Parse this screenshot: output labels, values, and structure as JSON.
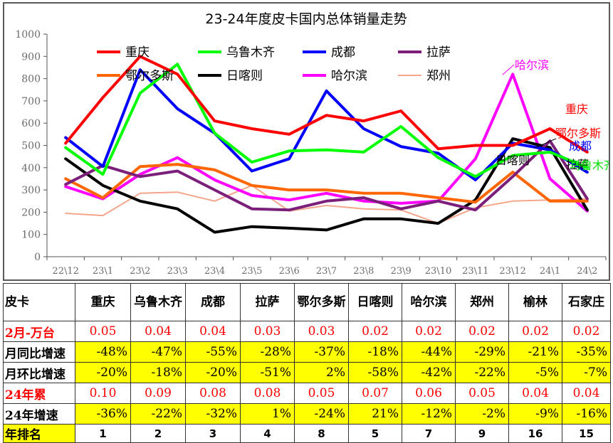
{
  "chart_data": {
    "type": "line",
    "title": "23-24年度皮卡国内总体销量走势",
    "categories": [
      "22\\12",
      "23\\1",
      "23\\2",
      "23\\3",
      "23\\4",
      "23\\5",
      "23\\6",
      "23\\7",
      "23\\8",
      "23\\9",
      "23\\10",
      "23\\11",
      "23\\12",
      "24\\1",
      "24\\2"
    ],
    "y_ticks": [
      "0",
      "100",
      "200",
      "300",
      "400",
      "500",
      "600",
      "700",
      "800",
      "900",
      "1000"
    ],
    "ylim": [
      0,
      1000
    ],
    "grid": false,
    "legend_position": "top-left (inside plot, 2 rows)",
    "series": [
      {
        "name": "重庆",
        "color": "#ff0000",
        "values": [
          510,
          715,
          900,
          820,
          610,
          575,
          550,
          635,
          610,
          655,
          485,
          500,
          500,
          575,
          470
        ]
      },
      {
        "name": "乌鲁木齐",
        "color": "#00ff00",
        "values": [
          490,
          370,
          735,
          865,
          555,
          425,
          475,
          480,
          470,
          585,
          445,
          360,
          455,
          470,
          400
        ]
      },
      {
        "name": "成都",
        "color": "#0000ff",
        "values": [
          535,
          405,
          840,
          665,
          555,
          385,
          440,
          745,
          575,
          495,
          465,
          345,
          510,
          480,
          380
        ]
      },
      {
        "name": "拉萨",
        "color": "#7b1f7b",
        "values": [
          325,
          410,
          360,
          385,
          300,
          215,
          210,
          250,
          265,
          215,
          250,
          210,
          360,
          520,
          260
        ]
      },
      {
        "name": "鄂尔多斯",
        "color": "#ff6600",
        "values": [
          350,
          265,
          405,
          415,
          390,
          320,
          300,
          300,
          285,
          285,
          265,
          245,
          380,
          250,
          250
        ]
      },
      {
        "name": "日喀则",
        "color": "#000000",
        "values": [
          440,
          320,
          250,
          215,
          110,
          135,
          128,
          120,
          170,
          170,
          150,
          255,
          530,
          490,
          210
        ]
      },
      {
        "name": "哈尔滨",
        "color": "#ff00ff",
        "values": [
          315,
          260,
          370,
          445,
          345,
          275,
          255,
          285,
          250,
          240,
          250,
          440,
          820,
          350,
          205
        ]
      },
      {
        "name": "郑州",
        "color": "#f4a58a",
        "values": [
          195,
          185,
          285,
          290,
          250,
          320,
          205,
          230,
          215,
          210,
          150,
          220,
          250,
          255,
          260
        ]
      }
    ],
    "end_labels": [
      {
        "text": "哈尔滨",
        "color": "#ff00ff"
      },
      {
        "text": "重庆",
        "color": "#ff0000"
      },
      {
        "text": "鄂尔多斯",
        "color": "#ff0000"
      },
      {
        "text": "成都",
        "color": "#0000ff"
      },
      {
        "text": "日喀则",
        "color": "#000000"
      },
      {
        "text": "拉萨",
        "color": "#000000"
      },
      {
        "text": "乌鲁木齐",
        "color": "#00dd00"
      }
    ]
  },
  "table": {
    "corner": "皮卡",
    "columns": [
      "重庆",
      "乌鲁木齐",
      "成都",
      "拉萨",
      "鄂尔多斯",
      "日喀则",
      "哈尔滨",
      "郑州",
      "榆林",
      "石家庄"
    ],
    "rows": [
      {
        "label": "2月-万台",
        "values": [
          "0.05",
          "0.04",
          "0.04",
          "0.03",
          "0.03",
          "0.02",
          "0.02",
          "0.02",
          "0.02",
          "0.02"
        ]
      },
      {
        "label": "月同比增速",
        "values": [
          "-48%",
          "-47%",
          "-55%",
          "-28%",
          "-37%",
          "-18%",
          "-44%",
          "-29%",
          "-21%",
          "-35%"
        ]
      },
      {
        "label": "月环比增速",
        "values": [
          "-20%",
          "-18%",
          "-20%",
          "-51%",
          "2%",
          "-58%",
          "-42%",
          "-22%",
          "-5%",
          "-7%"
        ]
      },
      {
        "label": "24年累",
        "values": [
          "0.10",
          "0.09",
          "0.08",
          "0.08",
          "0.05",
          "0.07",
          "0.06",
          "0.05",
          "0.04",
          "0.04"
        ]
      },
      {
        "label": "24年增速",
        "values": [
          "-36%",
          "-22%",
          "-32%",
          "1%",
          "-24%",
          "21%",
          "-12%",
          "-2%",
          "-9%",
          "-16%"
        ]
      },
      {
        "label": "年排名",
        "values": [
          "1",
          "2",
          "3",
          "4",
          "8",
          "5",
          "7",
          "9",
          "16",
          "15"
        ]
      }
    ]
  }
}
